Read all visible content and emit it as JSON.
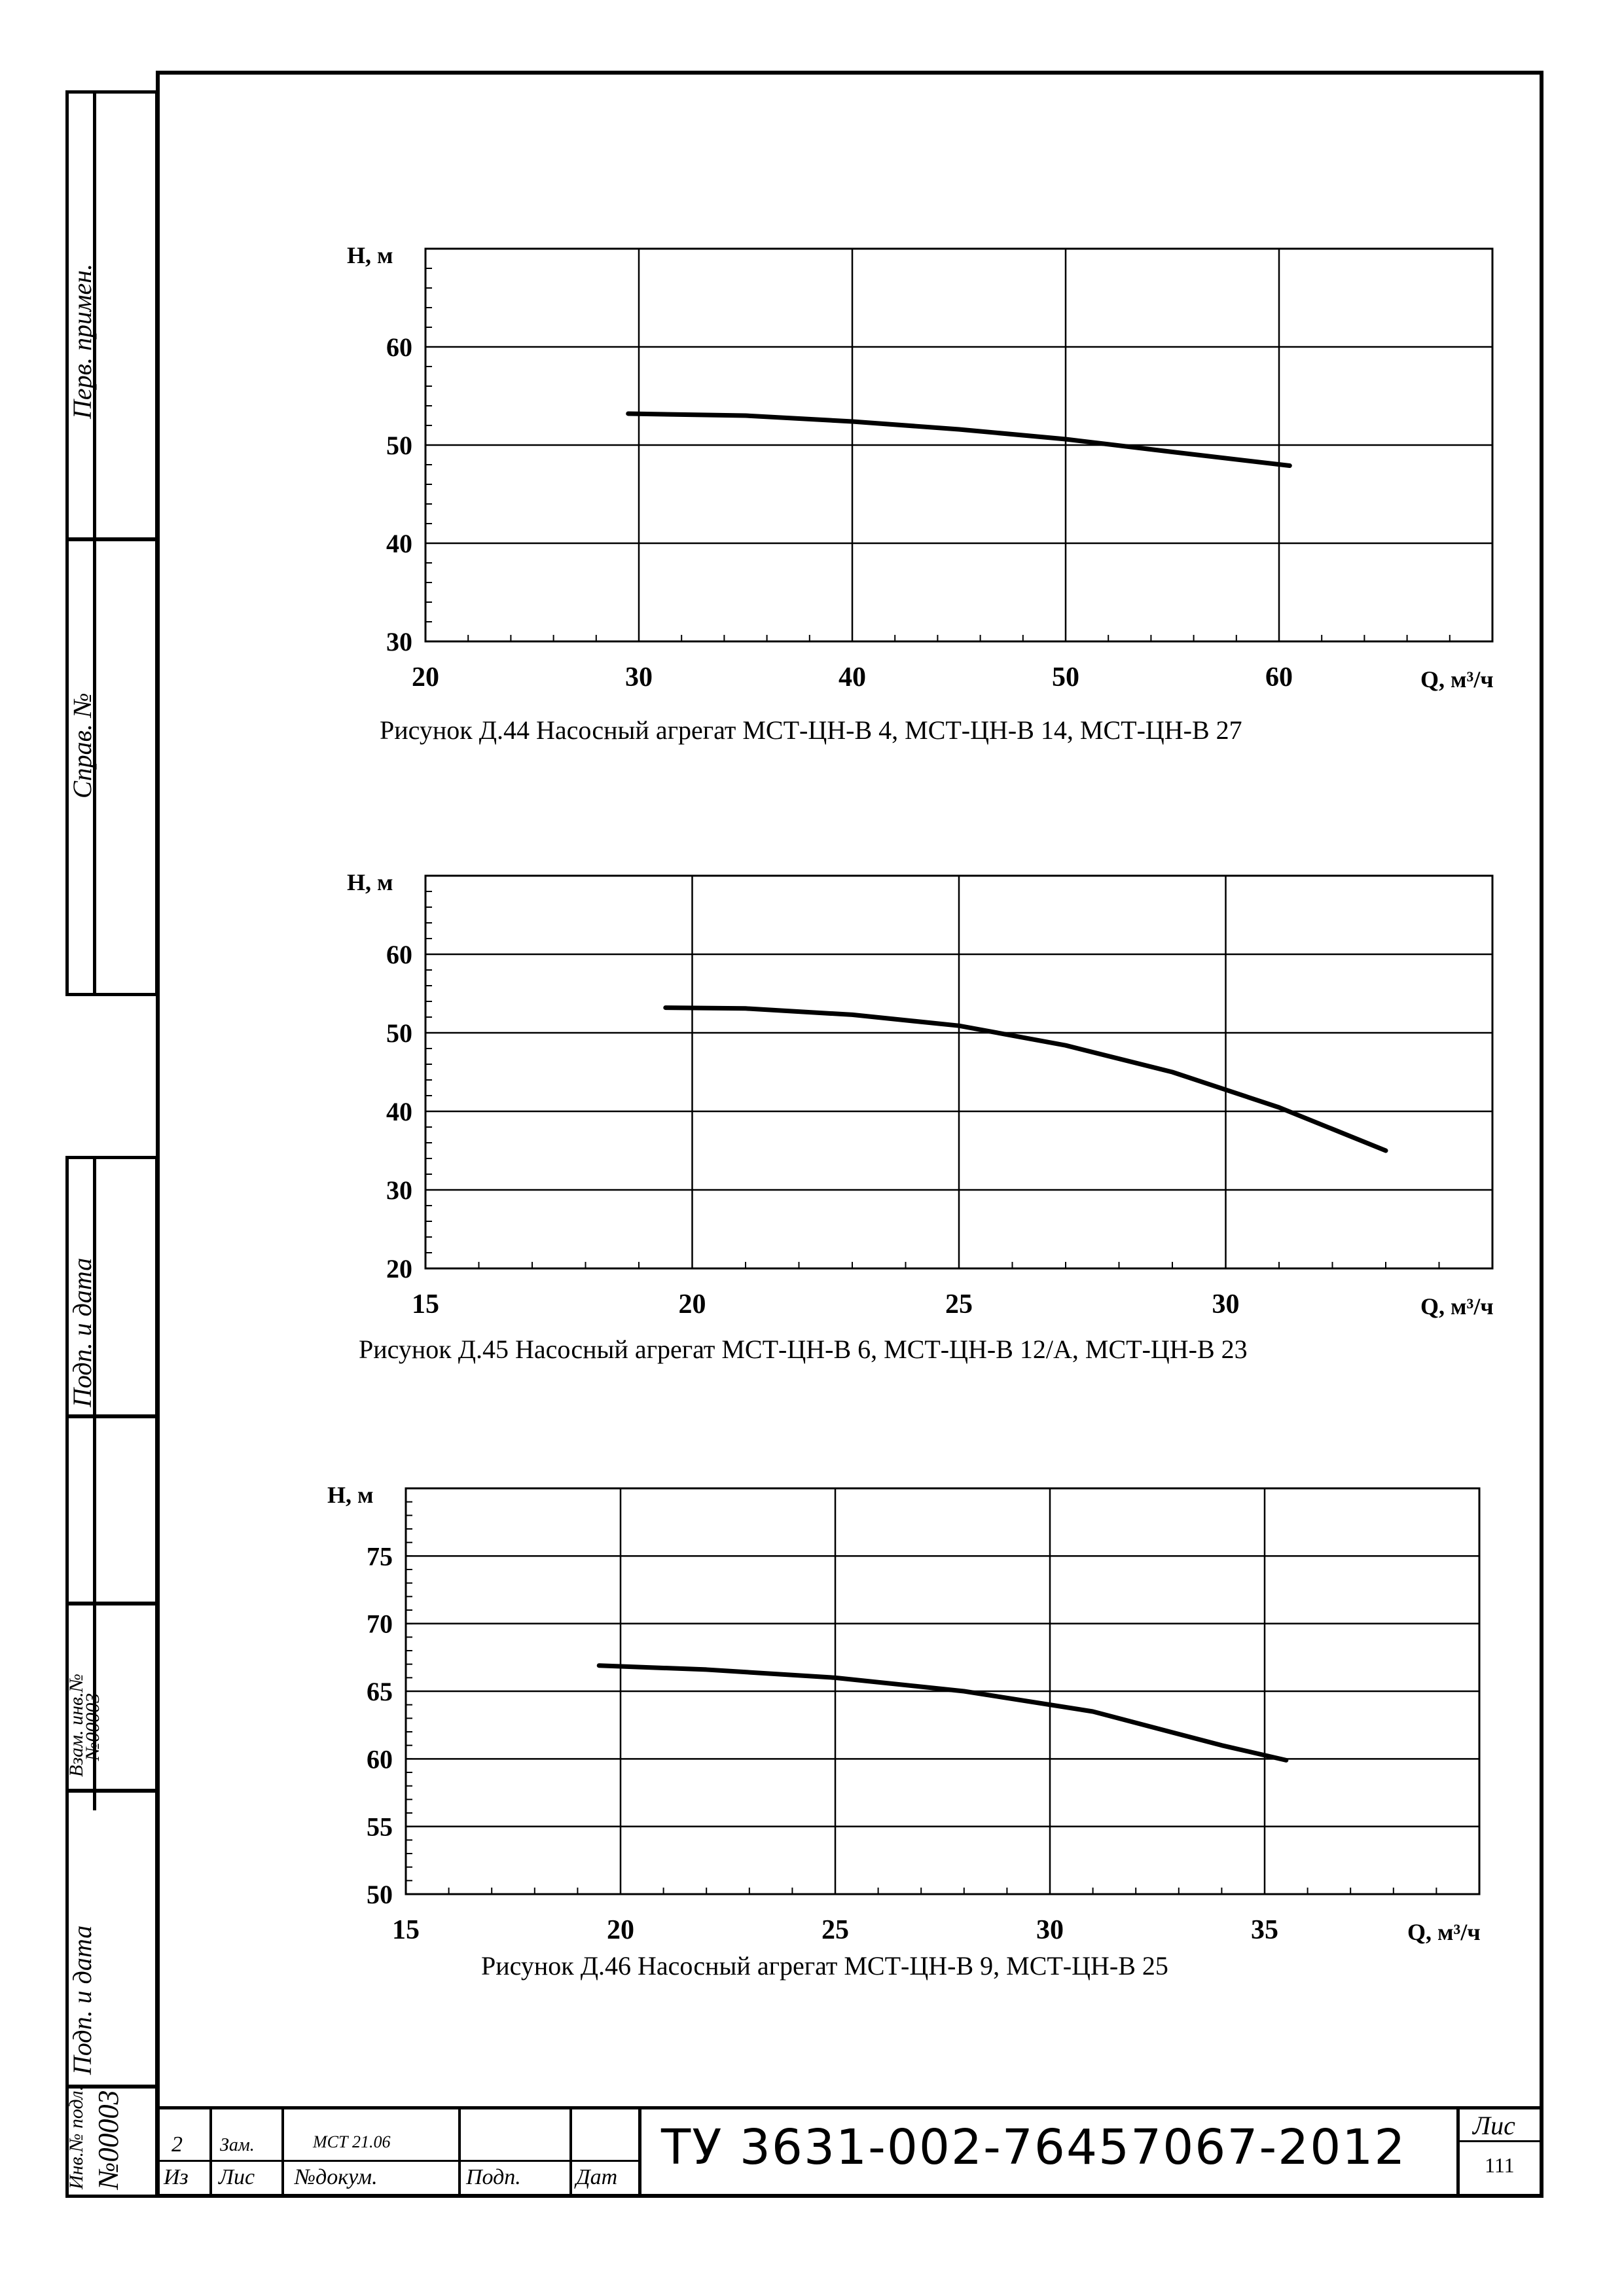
{
  "sidebar": {
    "perv_primen": "Перв. примен.",
    "sprav_no": "Справ. №",
    "podp_data_1": "Подп. и дата",
    "vzam_inv": "Взам. инв.№",
    "vzam_inv_value": "№00003",
    "podp_data_2": "Подп. и дата",
    "inv_podl": "Инв.№ подл.",
    "inv_podl_value": "№00003"
  },
  "charts": [
    {
      "caption": "Рисунок Д.44 Насосный агрегат МСТ-ЦН-В 4, МСТ-ЦН-В 14, МСТ-ЦН-В 27",
      "chart_data": {
        "type": "line",
        "ylabel": "Н, м",
        "xlabel": "Q, м³/ч",
        "xlim": [
          20,
          70
        ],
        "ylim": [
          30,
          70
        ],
        "xticks": [
          20,
          30,
          40,
          50,
          60
        ],
        "yticks": [
          30,
          40,
          50,
          60
        ],
        "grid": true,
        "series": [
          {
            "x": [
              29.5,
              35,
              40,
              45,
              50,
              55,
              60.5
            ],
            "y": [
              53.2,
              53.0,
              52.4,
              51.6,
              50.6,
              49.3,
              47.9
            ]
          }
        ]
      }
    },
    {
      "caption": "Рисунок Д.45 Насосный агрегат МСТ-ЦН-В 6, МСТ-ЦН-В 12/А, МСТ-ЦН-В 23",
      "chart_data": {
        "type": "line",
        "ylabel": "Н, м",
        "xlabel": "Q, м³/ч",
        "xlim": [
          15,
          35
        ],
        "ylim": [
          20,
          70
        ],
        "xticks": [
          15,
          20,
          25,
          30
        ],
        "yticks": [
          20,
          30,
          40,
          50,
          60
        ],
        "grid": true,
        "series": [
          {
            "x": [
              19.5,
              21,
              23,
              25,
              27,
              29,
              31,
              33
            ],
            "y": [
              53.2,
              53.1,
              52.3,
              50.9,
              48.4,
              45.0,
              40.5,
              35.0
            ]
          }
        ]
      }
    },
    {
      "caption": "Рисунок Д.46 Насосный агрегат МСТ-ЦН-В 9, МСТ-ЦН-В 25",
      "chart_data": {
        "type": "line",
        "ylabel": "Н, м",
        "xlabel": "Q, м³/ч",
        "xlim": [
          15,
          40
        ],
        "ylim": [
          50,
          80
        ],
        "xticks": [
          15,
          20,
          25,
          30,
          35
        ],
        "yticks": [
          50,
          55,
          60,
          65,
          70,
          75
        ],
        "grid": true,
        "series": [
          {
            "x": [
              19.5,
              22,
              25,
              28,
              31,
              34,
              35.5
            ],
            "y": [
              66.9,
              66.6,
              66.0,
              65.0,
              63.5,
              61.0,
              59.9
            ]
          }
        ]
      }
    }
  ],
  "title_block": {
    "row1": {
      "izm": "2",
      "list": "Зам.",
      "doc": "МСТ 21.06",
      "podp": "",
      "data": ""
    },
    "labels": {
      "izm": "Из",
      "list": "Лис",
      "doc": "№докум.",
      "podp": "Подп.",
      "data": "Дат"
    },
    "doc_number": "ТУ 3631-002-76457067-2012",
    "sheet_label": "Лис",
    "sheet_number": "111"
  }
}
